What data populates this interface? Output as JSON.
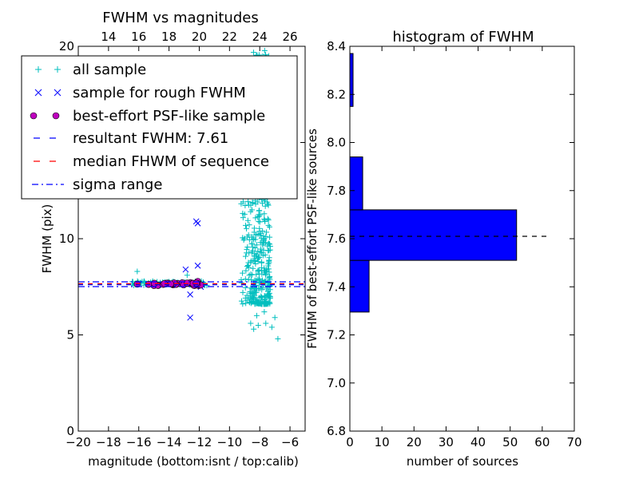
{
  "chart_data": [
    {
      "type": "scatter",
      "title": "FWHM vs magnitudes",
      "xlabel": "magnitude (bottom:isnt / top:calib)",
      "ylabel": "FWHM (pix)",
      "xlim": [
        -20,
        -5
      ],
      "ylim": [
        0,
        20
      ],
      "x_ticks": [
        -20,
        -18,
        -16,
        -14,
        -12,
        -10,
        -8,
        -6
      ],
      "y_ticks": [
        0,
        5,
        10,
        15,
        20
      ],
      "top_xlim": [
        12,
        27
      ],
      "top_ticks": [
        14,
        16,
        18,
        20,
        22,
        24,
        26
      ],
      "grid": false,
      "legend": "upper-left",
      "series": [
        {
          "name": "all sample",
          "marker": "+",
          "color": "#00bfbf",
          "generated": {
            "cluster": {
              "x_range": [
                -10,
                -7.3
              ],
              "y_range": [
                6.6,
                19.8
              ],
              "count": 480,
              "seed": 12345
            },
            "strip": {
              "x_range": [
                -16.5,
                -11.5
              ],
              "y": [
                7.55,
                7.8
              ],
              "count": 70,
              "seed": 777
            }
          },
          "points": [
            [
              -16.1,
              8.3
            ],
            [
              -12.8,
              8.1
            ],
            [
              -8.6,
              5.6
            ],
            [
              -8.4,
              5.3
            ],
            [
              -8.1,
              5.5
            ],
            [
              -7.6,
              5.6
            ],
            [
              -7.2,
              5.4
            ],
            [
              -6.8,
              4.8
            ],
            [
              -7.7,
              6.2
            ],
            [
              -8.2,
              6.0
            ],
            [
              -7.0,
              5.9
            ]
          ]
        },
        {
          "name": "sample for rough FWHM",
          "marker": "x",
          "color": "#0000ff",
          "points": [
            [
              -12.2,
              10.9
            ],
            [
              -12.1,
              10.8
            ],
            [
              -12.1,
              8.6
            ],
            [
              -12.9,
              8.4
            ],
            [
              -12.6,
              5.9
            ],
            [
              -12.6,
              7.1
            ],
            [
              -11.9,
              7.5
            ],
            [
              -12.3,
              7.7
            ]
          ]
        },
        {
          "name": "best-effort PSF-like sample",
          "marker": "o",
          "color": "#bf00bf",
          "generated": {
            "strip": {
              "x_range": [
                -15.4,
                -11.9
              ],
              "y": [
                7.56,
                7.72
              ],
              "count": 36,
              "seed": 4242
            }
          },
          "points": [
            [
              -16.1,
              7.64
            ],
            [
              -12.1,
              7.78
            ]
          ]
        }
      ],
      "lines": [
        {
          "name": "resultant FWHM: 7.61",
          "y": 7.61,
          "color": "#0000ff",
          "style": "dashed"
        },
        {
          "name": "median FHWM of sequence",
          "y": 7.66,
          "color": "#ff0000",
          "style": "dashed"
        },
        {
          "name": "sigma range",
          "y": 7.51,
          "color": "#0000ff",
          "style": "dashdot"
        },
        {
          "name": "",
          "y": 7.76,
          "color": "#0000ff",
          "style": "dashdot"
        }
      ]
    },
    {
      "type": "bar",
      "orientation": "horizontal",
      "title": "histogram of FWHM",
      "xlabel": "number of sources",
      "ylabel": "FWHM of best-effort PSF-like sources",
      "xlim": [
        0,
        70
      ],
      "ylim": [
        6.8,
        8.4
      ],
      "x_ticks": [
        0,
        10,
        20,
        30,
        40,
        50,
        60,
        70
      ],
      "y_ticks": [
        6.8,
        7.0,
        7.2,
        7.4,
        7.6,
        7.8,
        8.0,
        8.2,
        8.4
      ],
      "bins": [
        {
          "from": 7.295,
          "to": 7.51,
          "count": 6
        },
        {
          "from": 7.51,
          "to": 7.72,
          "count": 52
        },
        {
          "from": 7.72,
          "to": 7.94,
          "count": 4
        },
        {
          "from": 8.15,
          "to": 8.37,
          "count": 1
        }
      ],
      "bar_color": "#0000ff",
      "reference_line": {
        "y": 7.61,
        "x_range": [
          0,
          62.5
        ],
        "color": "#000000",
        "style": "dashed"
      }
    }
  ]
}
